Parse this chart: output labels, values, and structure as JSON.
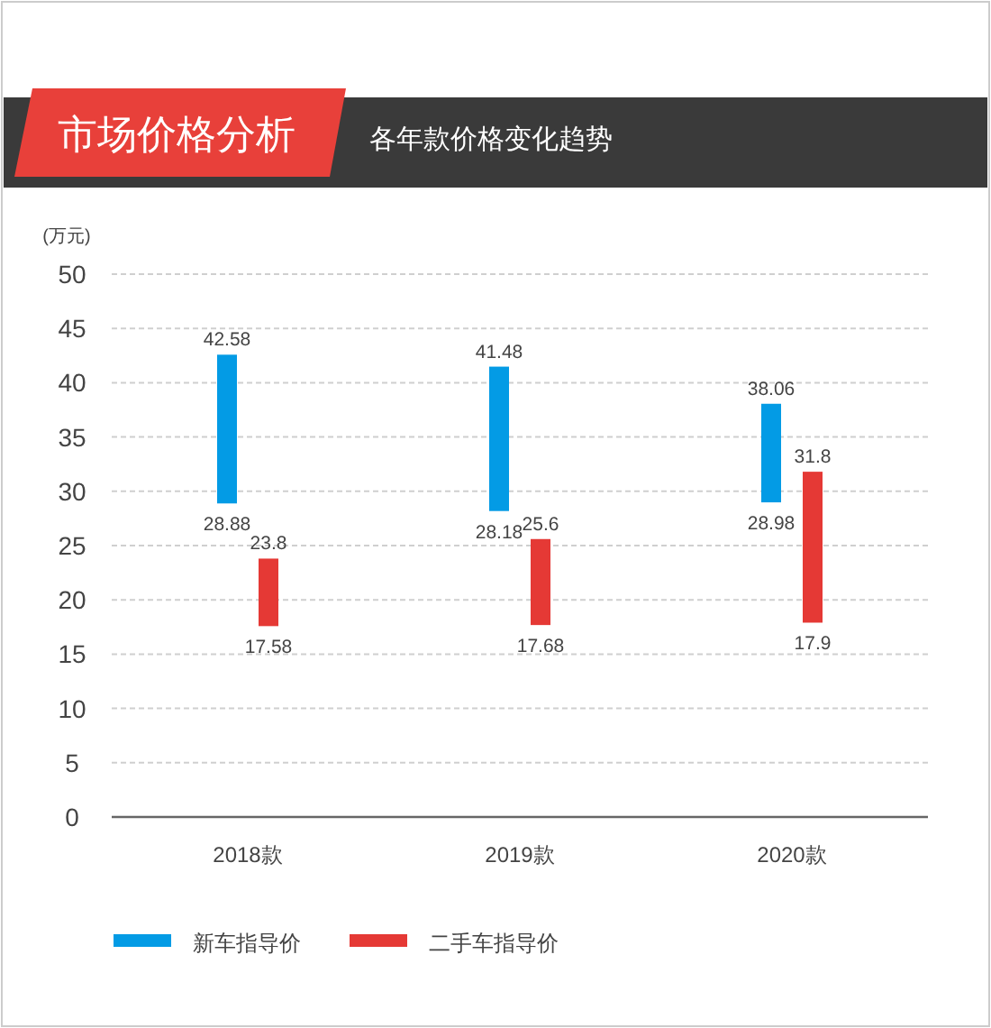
{
  "chart_data": {
    "type": "bar",
    "title": "市场价格分析",
    "subtitle": "各年款价格变化趋势",
    "ylabel": "(万元)",
    "categories": [
      "2018款",
      "2019款",
      "2020款"
    ],
    "series": [
      {
        "name": "新车指导价",
        "color": "#039be5",
        "base": [
          28.88,
          28.18,
          28.98
        ],
        "values": [
          13.7,
          13.3,
          9.08
        ]
      },
      {
        "name": "二手车指导价",
        "color": "#e53935",
        "base": [
          17.58,
          17.68,
          17.9
        ],
        "values": [
          6.22,
          7.92,
          13.9
        ]
      }
    ],
    "ylim": [
      0,
      50
    ],
    "yticks": [
      0,
      5,
      10,
      15,
      20,
      25,
      30,
      35,
      40,
      45,
      50
    ],
    "grid": "y",
    "legend": "bottom",
    "annotations": [
      "42.58",
      "28.88",
      "41.48",
      "28.18",
      "38.06",
      "28.98",
      "23.8",
      "17.58",
      "25.6",
      "17.68",
      "31.8",
      "17.9"
    ]
  }
}
